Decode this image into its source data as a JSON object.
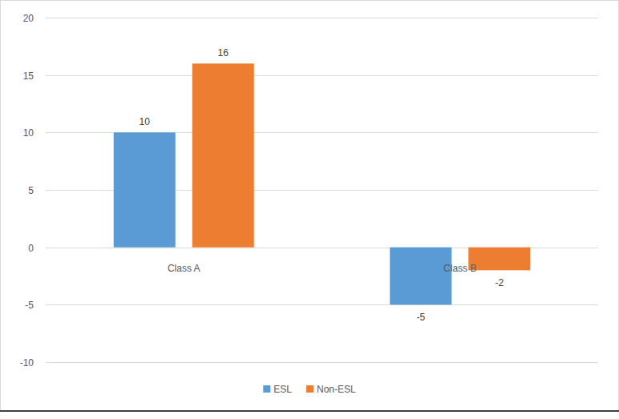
{
  "chart_data": {
    "type": "bar",
    "categories": [
      "Class A",
      "Class B"
    ],
    "series": [
      {
        "name": "ESL",
        "color": "#5b9bd5",
        "values": [
          10,
          -5
        ]
      },
      {
        "name": "Non-ESL",
        "color": "#ed7d31",
        "values": [
          16,
          -2
        ]
      }
    ],
    "ylim": [
      -10,
      20
    ],
    "yticks": [
      -10,
      -5,
      0,
      5,
      10,
      15,
      20
    ],
    "grid": true,
    "data_labels": true,
    "legend": "bottom"
  }
}
